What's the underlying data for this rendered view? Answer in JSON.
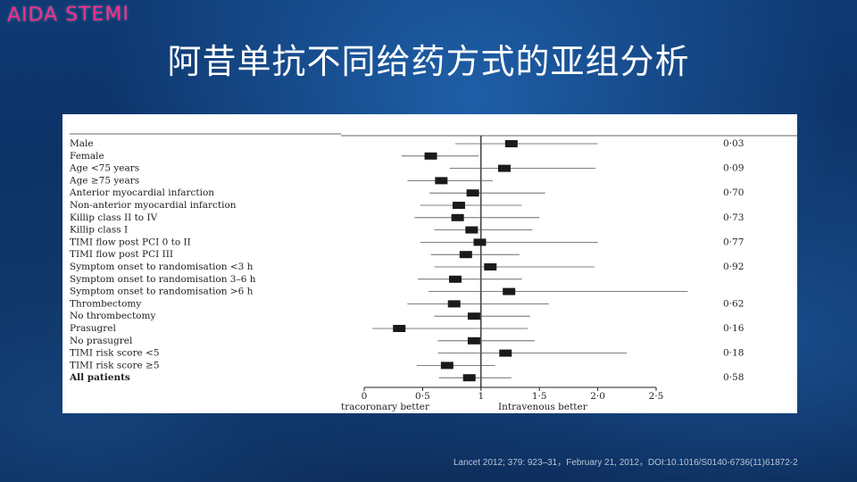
{
  "brand": "AIDA STEMI",
  "title": "阿昔单抗不同给药方式的亚组分析",
  "citation": "Lancet 2012; 379: 923–31，February 21, 2012，DOI:10.1016/S0140-6736(11)61872-2",
  "chart_data": {
    "type": "forest",
    "xlim": [
      0,
      2.5
    ],
    "ticks": [
      {
        "value": 0,
        "label": "0"
      },
      {
        "value": 0.5,
        "label": "0·5"
      },
      {
        "value": 1,
        "label": "1"
      },
      {
        "value": 1.5,
        "label": "1·5"
      },
      {
        "value": 2,
        "label": "2·0"
      },
      {
        "value": 2.5,
        "label": "2·5"
      }
    ],
    "reference_line": 1,
    "left_label": "tracoronary better",
    "right_label": "Intravenous better",
    "rows": [
      {
        "label": "Male",
        "estimate": 1.26,
        "low": 0.78,
        "high": 2.0,
        "p": "0·03"
      },
      {
        "label": "Female",
        "estimate": 0.57,
        "low": 0.32,
        "high": 0.98,
        "p": ""
      },
      {
        "label": "Age <75 years",
        "estimate": 1.2,
        "low": 0.73,
        "high": 1.98,
        "p": "0·09"
      },
      {
        "label": "Age ≥75 years",
        "estimate": 0.66,
        "low": 0.37,
        "high": 1.1,
        "p": ""
      },
      {
        "label": "Anterior myocardial infarction",
        "estimate": 0.93,
        "low": 0.56,
        "high": 1.55,
        "p": "0·70"
      },
      {
        "label": "Non-anterior myocardial infarction",
        "estimate": 0.81,
        "low": 0.48,
        "high": 1.35,
        "p": ""
      },
      {
        "label": "Killip class II to IV",
        "estimate": 0.8,
        "low": 0.43,
        "high": 1.5,
        "p": "0·73"
      },
      {
        "label": "Killip class I",
        "estimate": 0.92,
        "low": 0.6,
        "high": 1.44,
        "p": ""
      },
      {
        "label": "TIMI flow post PCI 0 to II",
        "estimate": 0.99,
        "low": 0.48,
        "high": 2.0,
        "p": "0·77"
      },
      {
        "label": "TIMI flow post PCI III",
        "estimate": 0.87,
        "low": 0.57,
        "high": 1.33,
        "p": ""
      },
      {
        "label": "Symptom onset to randomisation <3 h",
        "estimate": 1.08,
        "low": 0.6,
        "high": 1.97,
        "p": "0·92"
      },
      {
        "label": "Symptom onset to randomisation 3–6 h",
        "estimate": 0.78,
        "low": 0.46,
        "high": 1.35,
        "p": ""
      },
      {
        "label": "Symptom onset to randomisation >6 h",
        "estimate": 1.24,
        "low": 0.55,
        "high": 2.77,
        "p": ""
      },
      {
        "label": "Thrombectomy",
        "estimate": 0.77,
        "low": 0.37,
        "high": 1.58,
        "p": "0·62"
      },
      {
        "label": "No thrombectomy",
        "estimate": 0.94,
        "low": 0.6,
        "high": 1.42,
        "p": ""
      },
      {
        "label": "Prasugrel",
        "estimate": 0.3,
        "low": 0.07,
        "high": 1.4,
        "p": "0·16"
      },
      {
        "label": "No prasugrel",
        "estimate": 0.94,
        "low": 0.63,
        "high": 1.46,
        "p": ""
      },
      {
        "label": "TIMI risk score <5",
        "estimate": 1.21,
        "low": 0.63,
        "high": 2.25,
        "p": "0·18"
      },
      {
        "label": "TIMI risk score ≥5",
        "estimate": 0.71,
        "low": 0.45,
        "high": 1.12,
        "p": ""
      },
      {
        "label": "All patients",
        "estimate": 0.9,
        "low": 0.64,
        "high": 1.26,
        "p": "0·58",
        "bold": true
      }
    ]
  }
}
